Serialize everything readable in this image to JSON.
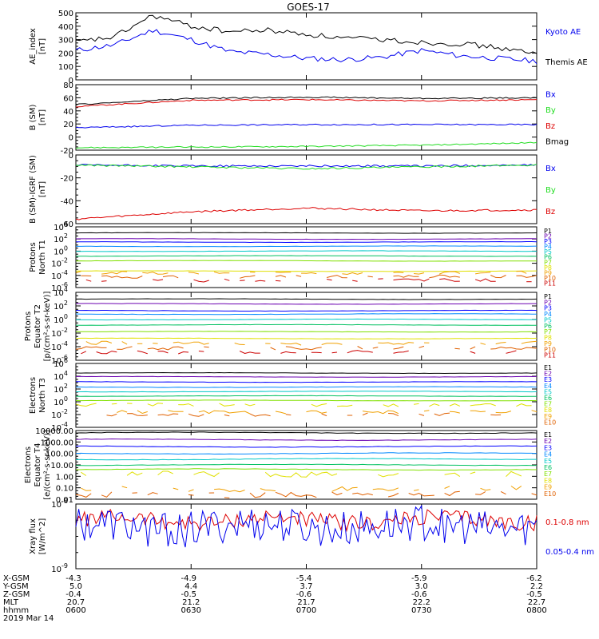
{
  "title": "GOES-17",
  "colors": {
    "black": "#000000",
    "blue": "#0000ee",
    "green": "#22dd22",
    "red": "#dd0000",
    "flux": [
      "#000000",
      "#6a00b0",
      "#0000ff",
      "#0088ff",
      "#00c8c8",
      "#00c060",
      "#80e000",
      "#e0e000",
      "#f0a000",
      "#e06000",
      "#cc0000"
    ]
  },
  "panels": [
    {
      "id": "ae",
      "ylabel": [
        "AE_index",
        "[nT]"
      ],
      "ticks": [
        "0",
        "100",
        "200",
        "300",
        "400",
        "500"
      ],
      "legend": [
        {
          "text": "Kyoto AE",
          "color": "blue"
        },
        {
          "text": "Themis AE",
          "color": "black"
        }
      ]
    },
    {
      "id": "bsm",
      "ylabel": [
        "B (SM)",
        "[nT]"
      ],
      "ticks": [
        "-20",
        "0",
        "20",
        "40",
        "60",
        "80"
      ],
      "legend": [
        {
          "text": "Bx",
          "color": "blue"
        },
        {
          "text": "By",
          "color": "green"
        },
        {
          "text": "Bz",
          "color": "red"
        },
        {
          "text": "Bmag",
          "color": "black"
        }
      ]
    },
    {
      "id": "bigrf",
      "ylabel": [
        "B (SM)-IGRF (SM)",
        "[nT]"
      ],
      "ticks": [
        "-60",
        "-40",
        "-20",
        "0"
      ],
      "legend": [
        {
          "text": "Bx",
          "color": "blue"
        },
        {
          "text": "By",
          "color": "green"
        },
        {
          "text": "Bz",
          "color": "red"
        }
      ]
    },
    {
      "id": "pn",
      "ylabel": [
        "Protons",
        "North T1"
      ],
      "ticks": [
        "10^-6",
        "10^-4",
        "10^-2",
        "10^0",
        "10^2",
        "10^4"
      ],
      "legend": [
        "P1",
        "P2",
        "P3",
        "P4",
        "P5",
        "P6",
        "P7",
        "P8",
        "P9",
        "P10",
        "P11"
      ]
    },
    {
      "id": "pe",
      "ylabel": [
        "Protons",
        "Equator T2",
        "[p/(cm²-s-sr-keV)]"
      ],
      "ticks": [
        "10^-6",
        "10^-4",
        "10^-2",
        "10^0",
        "10^2",
        "10^4"
      ],
      "legend": [
        "P1",
        "P2",
        "P3",
        "P4",
        "P5",
        "P6",
        "P7",
        "P8",
        "P9",
        "P10",
        "P11"
      ]
    },
    {
      "id": "en",
      "ylabel": [
        "Electrons",
        "North T3"
      ],
      "ticks": [
        "10^-4",
        "10^-2",
        "10^0",
        "10^2",
        "10^4",
        "10^6"
      ],
      "legend": [
        "E1",
        "E2",
        "E3",
        "E4",
        "E5",
        "E6",
        "E7",
        "E8",
        "E9",
        "E10"
      ]
    },
    {
      "id": "ee",
      "ylabel": [
        "Electrons",
        "Equator T4",
        "[e/(cm²-s-sr-keV)]"
      ],
      "ticks": [
        "0.01",
        "0.10",
        "1.00",
        "10.00",
        "100.00",
        "1000.00",
        "10000.00"
      ],
      "legend": [
        "E1",
        "E2",
        "E3",
        "E4",
        "E5",
        "E6",
        "E7",
        "E8",
        "E9",
        "E10"
      ]
    },
    {
      "id": "xr",
      "ylabel": [
        "Xray flux",
        "[W/m^2]"
      ],
      "ticks": [
        "10^-9",
        "10^-8"
      ],
      "legend": [
        {
          "text": "0.1-0.8 nm",
          "color": "red"
        },
        {
          "text": "0.05-0.4 nm",
          "color": "blue"
        }
      ]
    }
  ],
  "xaxis": {
    "rowlabels": [
      "X-GSM",
      "Y-GSM",
      "Z-GSM",
      "MLT",
      "hhmm",
      "2019 Mar 14"
    ],
    "columns": [
      [
        "-4.3",
        "5.0",
        "-0.4",
        "20.7",
        "0600"
      ],
      [
        "-4.9",
        "4.4",
        "-0.5",
        "21.2",
        "0630"
      ],
      [
        "-5.4",
        "3.7",
        "-0.6",
        "21.7",
        "0700"
      ],
      [
        "-5.9",
        "3.0",
        "-0.6",
        "22.2",
        "0730"
      ],
      [
        "-6.2",
        "2.2",
        "-0.5",
        "22.7",
        "0800"
      ]
    ]
  },
  "chart_data": [
    {
      "type": "line",
      "title": "GOES-17",
      "xlabel": "hhmm",
      "ylabel": "AE_index [nT]",
      "ylim": [
        0,
        500
      ],
      "x": [
        "0600",
        "0610",
        "0620",
        "0630",
        "0640",
        "0650",
        "0700",
        "0710",
        "0720",
        "0730",
        "0740",
        "0750",
        "0800"
      ],
      "series": [
        {
          "name": "Kyoto AE",
          "color": "blue",
          "values": [
            220,
            260,
            370,
            300,
            210,
            190,
            160,
            150,
            170,
            220,
            180,
            160,
            140
          ]
        },
        {
          "name": "Themis AE",
          "color": "black",
          "values": [
            280,
            320,
            480,
            400,
            360,
            370,
            340,
            310,
            300,
            280,
            270,
            240,
            190
          ]
        }
      ]
    },
    {
      "type": "line",
      "ylabel": "B (SM) [nT]",
      "ylim": [
        -25,
        80
      ],
      "x": [
        "0600",
        "0630",
        "0700",
        "0730",
        "0800"
      ],
      "series": [
        {
          "name": "Bx",
          "color": "blue",
          "values": [
            11,
            15,
            16,
            16,
            16
          ]
        },
        {
          "name": "By",
          "color": "green",
          "values": [
            -21,
            -20,
            -19,
            -17,
            -13
          ]
        },
        {
          "name": "Bz",
          "color": "red",
          "values": [
            45,
            55,
            56,
            54,
            56
          ]
        },
        {
          "name": "Bmag",
          "color": "black",
          "values": [
            48,
            58,
            60,
            58,
            59
          ]
        }
      ]
    },
    {
      "type": "line",
      "ylabel": "B (SM)-IGRF (SM) [nT]",
      "ylim": [
        -65,
        10
      ],
      "x": [
        "0600",
        "0630",
        "0700",
        "0730",
        "0800"
      ],
      "series": [
        {
          "name": "Bx",
          "color": "blue",
          "values": [
            -1,
            -2,
            -2,
            -2,
            -1
          ]
        },
        {
          "name": "By",
          "color": "green",
          "values": [
            -1,
            -3,
            -5,
            -3,
            -1
          ]
        },
        {
          "name": "Bz",
          "color": "red",
          "values": [
            -60,
            -52,
            -48,
            -51,
            -50
          ]
        }
      ]
    },
    {
      "type": "line",
      "ylabel": "Protons North T1",
      "scale": "log",
      "ylim": [
        1e-06,
        10000.0
      ],
      "series_names": [
        "P1",
        "P2",
        "P3",
        "P4",
        "P5",
        "P6",
        "P7",
        "P8",
        "P9",
        "P10",
        "P11"
      ],
      "levels_log10": [
        3.0,
        2.0,
        1.5,
        0.8,
        0.0,
        -0.8,
        -1.6,
        -3.3,
        -3.6,
        -4.2,
        -4.8
      ]
    },
    {
      "type": "line",
      "ylabel": "Protons Equator T2 [p/(cm²-s-sr-keV)]",
      "scale": "log",
      "ylim": [
        1e-06,
        10000.0
      ],
      "series_names": [
        "P1",
        "P2",
        "P3",
        "P4",
        "P5",
        "P6",
        "P7",
        "P8",
        "P9",
        "P10",
        "P11"
      ],
      "levels_log10": [
        3.0,
        2.3,
        1.3,
        0.8,
        0.0,
        -0.8,
        -1.8,
        -2.8,
        -3.5,
        -4.2,
        -4.8
      ]
    },
    {
      "type": "line",
      "ylabel": "Electrons North T3",
      "scale": "log",
      "ylim": [
        0.0001,
        1000000.0
      ],
      "series_names": [
        "E1",
        "E2",
        "E3",
        "E4",
        "E5",
        "E6",
        "E7",
        "E8",
        "E9",
        "E10"
      ],
      "levels_log10": [
        4.5,
        3.9,
        3.1,
        2.3,
        1.6,
        0.9,
        0.2,
        -0.5,
        -1.6,
        -2.0
      ]
    },
    {
      "type": "line",
      "ylabel": "Electrons Equator T4 [e/(cm²-s-sr-keV)]",
      "scale": "log",
      "ylim": [
        0.01,
        10000
      ],
      "series_names": [
        "E1",
        "E2",
        "E3",
        "E4",
        "E5",
        "E6",
        "E7",
        "E8",
        "E9",
        "E10"
      ],
      "levels_log10": [
        3.8,
        3.2,
        2.6,
        2.0,
        1.5,
        1.0,
        0.6,
        0.2,
        -1.1,
        -1.6
      ]
    },
    {
      "type": "line",
      "ylabel": "Xray flux [W/m^2]",
      "scale": "log",
      "ylim": [
        1e-09,
        1e-08
      ],
      "series": [
        {
          "name": "0.1-0.8 nm",
          "color": "red",
          "log10_mean": -8.25
        },
        {
          "name": "0.05-0.4 nm",
          "color": "blue",
          "log10_mean": -8.35
        }
      ]
    }
  ]
}
